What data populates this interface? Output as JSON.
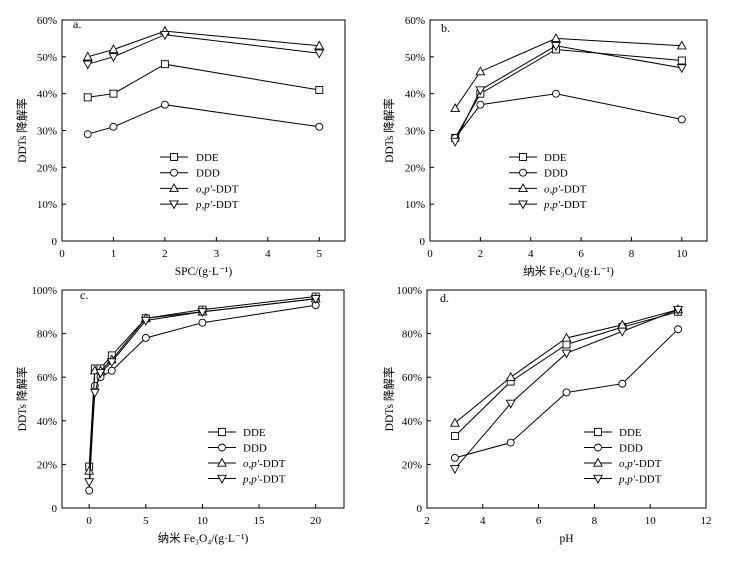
{
  "colors": {
    "line": "#000000",
    "marker_fill": "#ffffff",
    "background": "#ffffff"
  },
  "chart_data": [
    {
      "type": "line",
      "label": "a.",
      "xlabel": "SPC/(g·L⁻¹)",
      "ylabel": "DDTs 降解率",
      "xlim": [
        0,
        5.5
      ],
      "ylim": [
        0,
        60
      ],
      "xticks": [
        0,
        1,
        2,
        3,
        4,
        5
      ],
      "xtick_labels": [
        "0",
        "1",
        "2",
        "3",
        "4",
        "5"
      ],
      "yticks": [
        0,
        10,
        20,
        30,
        40,
        50,
        60
      ],
      "ytick_labels": [
        "0",
        "10%",
        "20%",
        "30%",
        "40%",
        "50%",
        "60%"
      ],
      "grid": false,
      "legend_position": "bottom-center",
      "x": [
        0.5,
        1,
        2,
        5
      ],
      "series": [
        {
          "name": "DDE",
          "marker": "square",
          "values": [
            39,
            40,
            48,
            41
          ]
        },
        {
          "name": "DDD",
          "marker": "circle",
          "values": [
            29,
            31,
            37,
            31
          ]
        },
        {
          "name": "o,p′-DDT",
          "marker": "triangle-up",
          "values": [
            50,
            52,
            57,
            53
          ]
        },
        {
          "name": "p,p′-DDT",
          "marker": "triangle-down",
          "values": [
            48,
            50,
            56,
            51
          ]
        }
      ]
    },
    {
      "type": "line",
      "label": "b.",
      "xlabel": "纳米 Fe₃O₄/(g·L⁻¹)",
      "ylabel": "DDTs 降解率",
      "xlim": [
        0,
        11
      ],
      "ylim": [
        0,
        60
      ],
      "xticks": [
        0,
        2,
        4,
        6,
        8,
        10
      ],
      "xtick_labels": [
        "0",
        "2",
        "4",
        "6",
        "8",
        "10"
      ],
      "yticks": [
        0,
        10,
        20,
        30,
        40,
        50,
        60
      ],
      "ytick_labels": [
        "0",
        "10%",
        "20%",
        "30%",
        "40%",
        "50%",
        "60%"
      ],
      "grid": false,
      "legend_position": "bottom-center",
      "x": [
        1,
        2,
        5,
        10
      ],
      "series": [
        {
          "name": "DDE",
          "marker": "square",
          "values": [
            28,
            40,
            52,
            49
          ]
        },
        {
          "name": "DDD",
          "marker": "circle",
          "values": [
            28,
            37,
            40,
            33
          ]
        },
        {
          "name": "o,p′-DDT",
          "marker": "triangle-up",
          "values": [
            36,
            46,
            55,
            53
          ]
        },
        {
          "name": "p,p′-DDT",
          "marker": "triangle-down",
          "values": [
            27,
            41,
            53,
            47
          ]
        }
      ]
    },
    {
      "type": "line",
      "label": "c.",
      "xlabel": "纳米 Fe₃O₄/(g·L⁻¹)",
      "ylabel": "DDTs 降解率",
      "xlim": [
        -2.4,
        22.5
      ],
      "ylim": [
        0,
        100
      ],
      "xticks": [
        0,
        5,
        10,
        15,
        20
      ],
      "xtick_labels": [
        "0",
        "5",
        "10",
        "15",
        "20"
      ],
      "yticks": [
        0,
        20,
        40,
        60,
        80,
        100
      ],
      "ytick_labels": [
        "0",
        "20%",
        "40%",
        "60%",
        "80%",
        "100%"
      ],
      "grid": false,
      "legend_position": "bottom-right",
      "x": [
        0,
        0.5,
        1,
        2,
        5,
        10,
        20
      ],
      "series": [
        {
          "name": "DDE",
          "marker": "square",
          "values": [
            19,
            64,
            64,
            70,
            87,
            91,
            97
          ]
        },
        {
          "name": "DDD",
          "marker": "circle",
          "values": [
            8,
            56,
            60,
            63,
            78,
            85,
            93
          ]
        },
        {
          "name": "o,p′-DDT",
          "marker": "triangle-up",
          "values": [
            17,
            63,
            63,
            68,
            87,
            90,
            96
          ]
        },
        {
          "name": "p,p′-DDT",
          "marker": "triangle-down",
          "values": [
            12,
            53,
            62,
            67,
            86,
            90,
            96
          ]
        }
      ]
    },
    {
      "type": "line",
      "label": "d.",
      "xlabel": "pH",
      "ylabel": "DDTs 降解率",
      "xlim": [
        2,
        12
      ],
      "ylim": [
        0,
        100
      ],
      "xticks": [
        2,
        4,
        6,
        8,
        10,
        12
      ],
      "xtick_labels": [
        "2",
        "4",
        "6",
        "8",
        "10",
        "12"
      ],
      "yticks": [
        0,
        20,
        40,
        60,
        80,
        100
      ],
      "ytick_labels": [
        "0",
        "20%",
        "40%",
        "60%",
        "80%",
        "100%"
      ],
      "grid": false,
      "legend_position": "bottom-right",
      "x": [
        3,
        5,
        7,
        9,
        11
      ],
      "series": [
        {
          "name": "DDE",
          "marker": "square",
          "values": [
            33,
            58,
            75,
            83,
            90
          ]
        },
        {
          "name": "DDD",
          "marker": "circle",
          "values": [
            23,
            30,
            53,
            57,
            82
          ]
        },
        {
          "name": "o,p′-DDT",
          "marker": "triangle-up",
          "values": [
            39,
            60,
            78,
            84,
            91
          ]
        },
        {
          "name": "p,p′-DDT",
          "marker": "triangle-down",
          "values": [
            18,
            48,
            71,
            81,
            91
          ]
        }
      ]
    }
  ]
}
